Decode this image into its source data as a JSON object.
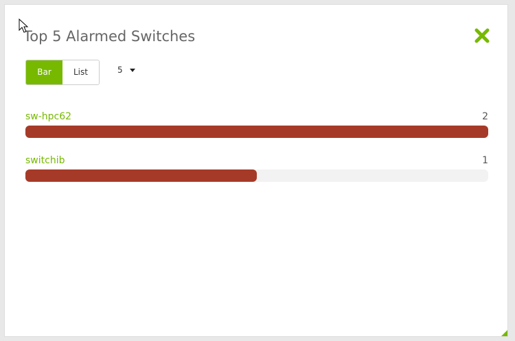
{
  "title": "Top 5 Alarmed Switches",
  "view_toggle": {
    "bar_label": "Bar",
    "list_label": "List",
    "active": "Bar"
  },
  "count_select": {
    "value": "5"
  },
  "colors": {
    "accent": "#76b900",
    "bar": "#a63a28",
    "track": "#f2f2f2"
  },
  "chart_data": {
    "type": "bar",
    "categories": [
      "sw-hpc62",
      "switchib"
    ],
    "values": [
      2,
      1
    ],
    "xlim": [
      0,
      2
    ]
  },
  "items": [
    {
      "name": "sw-hpc62",
      "value": "2"
    },
    {
      "name": "switchib",
      "value": "1"
    }
  ]
}
